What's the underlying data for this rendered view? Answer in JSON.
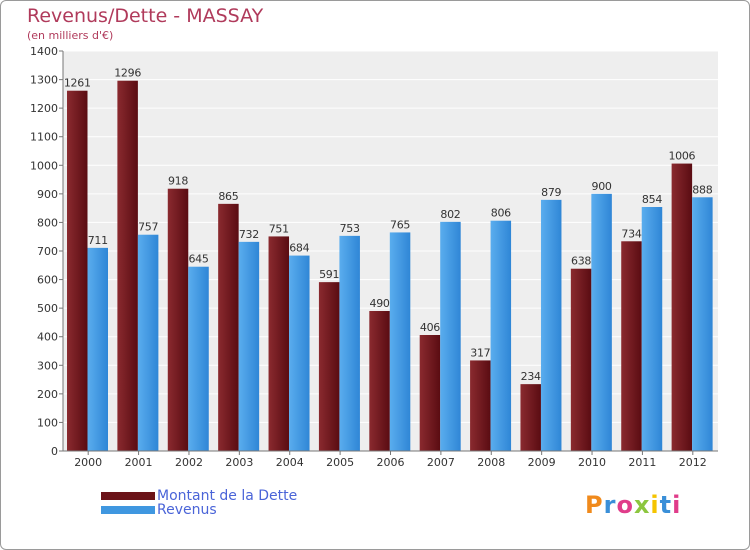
{
  "chart_data": {
    "type": "bar",
    "title": "Revenus/Dette - MASSAY",
    "subtitle": "(en milliers d'€)",
    "categories": [
      "2000",
      "2001",
      "2002",
      "2003",
      "2004",
      "2005",
      "2006",
      "2007",
      "2008",
      "2009",
      "2010",
      "2011",
      "2012"
    ],
    "series": [
      {
        "name": "Montant de la Dette",
        "color": "#6b1318",
        "values": [
          1261,
          1296,
          918,
          865,
          751,
          591,
          490,
          406,
          317,
          234,
          638,
          734,
          1006
        ]
      },
      {
        "name": "Revenus",
        "color": "#3f97e0",
        "values": [
          711,
          757,
          645,
          732,
          684,
          753,
          765,
          802,
          806,
          879,
          900,
          854,
          888
        ]
      }
    ],
    "ylim": [
      0,
      1400
    ],
    "yticks": [
      0,
      100,
      200,
      300,
      400,
      500,
      600,
      700,
      800,
      900,
      1000,
      1100,
      1200,
      1300,
      1400
    ],
    "grid": true,
    "legend_position": "bottom-left"
  },
  "logo": {
    "text": "Proxiti",
    "colors": [
      "#f08a1c",
      "#3a8fd8",
      "#e03c8a",
      "#8cc63f",
      "#f5c400",
      "#3a8fd8",
      "#e03c8a"
    ]
  }
}
